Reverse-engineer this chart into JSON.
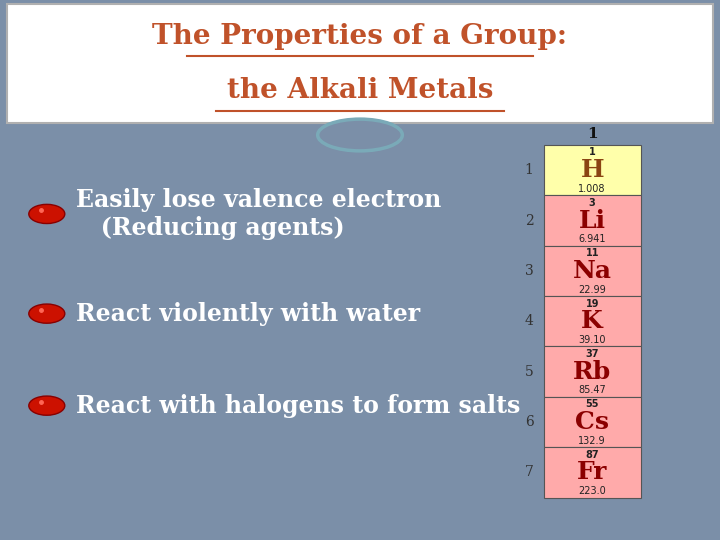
{
  "title_line1": "The Properties of a Group:",
  "title_line2": "the Alkali Metals",
  "title_color": "#c0522a",
  "title_fontsize": 20,
  "header_bg": "#ffffff",
  "body_bg": "#7b8fa8",
  "footer_bg": "#8fa8a8",
  "bullet_text_color": "#ffffff",
  "bullets": [
    "Easily lose valence electron\n   (Reducing agents)",
    "React violently with water",
    "React with halogens to form salts"
  ],
  "bullet_fontsize": 17,
  "elements": [
    {
      "symbol": "H",
      "number": "1",
      "mass": "1.008",
      "row": 1,
      "bg": "#ffffaa",
      "fg": "#8B4513"
    },
    {
      "symbol": "Li",
      "number": "3",
      "mass": "6.941",
      "row": 2,
      "bg": "#ffaaaa",
      "fg": "#8B0000"
    },
    {
      "symbol": "Na",
      "number": "11",
      "mass": "22.99",
      "row": 3,
      "bg": "#ffaaaa",
      "fg": "#8B0000"
    },
    {
      "symbol": "K",
      "number": "19",
      "mass": "39.10",
      "row": 4,
      "bg": "#ffaaaa",
      "fg": "#8B0000"
    },
    {
      "symbol": "Rb",
      "number": "37",
      "mass": "85.47",
      "row": 5,
      "bg": "#ffaaaa",
      "fg": "#8B0000"
    },
    {
      "symbol": "Cs",
      "number": "55",
      "mass": "132.9",
      "row": 6,
      "bg": "#ffaaaa",
      "fg": "#8B0000"
    },
    {
      "symbol": "Fr",
      "number": "87",
      "mass": "223.0",
      "row": 7,
      "bg": "#ffaaaa",
      "fg": "#8B0000"
    }
  ],
  "connector_circle_edge": "#7aaab8"
}
